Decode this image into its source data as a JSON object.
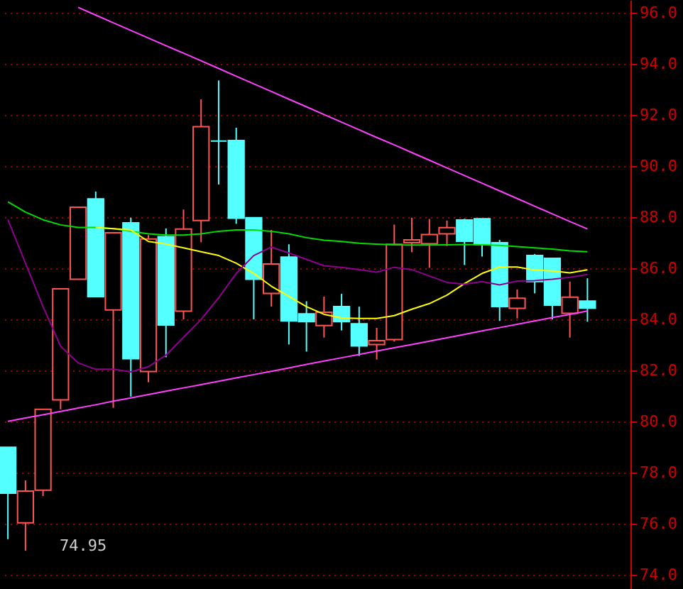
{
  "chart_data": {
    "type": "candlestick",
    "categories": [
      null,
      null,
      null,
      null,
      null,
      null,
      null,
      null,
      null,
      null,
      null,
      null,
      null,
      null,
      null,
      null,
      null,
      null,
      null,
      null,
      null,
      null,
      null,
      null,
      null,
      null,
      null,
      null,
      null,
      null,
      null,
      null,
      null,
      null
    ],
    "ohlc": [
      [
        79.0,
        79.0,
        75.4,
        77.2
      ],
      [
        76.04,
        77.7,
        74.95,
        77.28
      ],
      [
        77.32,
        80.48,
        77.09,
        80.48
      ],
      [
        80.85,
        85.2,
        80.48,
        85.2
      ],
      [
        85.57,
        88.39,
        85.57,
        88.39
      ],
      [
        88.72,
        89.0,
        84.89,
        84.89
      ],
      [
        84.37,
        87.39,
        80.54,
        87.39
      ],
      [
        87.78,
        87.98,
        80.98,
        82.46
      ],
      [
        81.96,
        87.3,
        81.54,
        87.15
      ],
      [
        87.24,
        87.56,
        82.52,
        83.78
      ],
      [
        84.32,
        88.3,
        84.0,
        87.54
      ],
      [
        87.87,
        92.61,
        87.02,
        91.54
      ],
      [
        90.98,
        93.35,
        89.28,
        90.98
      ],
      [
        91.0,
        91.5,
        87.74,
        87.96
      ],
      [
        87.98,
        87.98,
        84.0,
        85.57
      ],
      [
        85.02,
        87.5,
        84.5,
        86.17
      ],
      [
        86.44,
        86.94,
        83.02,
        83.94
      ],
      [
        84.22,
        84.71,
        82.74,
        83.91
      ],
      [
        83.76,
        84.89,
        83.29,
        84.28
      ],
      [
        84.5,
        85.0,
        83.57,
        83.91
      ],
      [
        83.83,
        84.5,
        82.57,
        82.96
      ],
      [
        83.02,
        83.67,
        82.43,
        83.17
      ],
      [
        83.21,
        87.71,
        83.13,
        86.94
      ],
      [
        87.0,
        87.98,
        86.63,
        87.11
      ],
      [
        86.96,
        87.93,
        86.02,
        87.32
      ],
      [
        87.35,
        87.87,
        86.87,
        87.59
      ],
      [
        87.89,
        87.94,
        86.13,
        87.06
      ],
      [
        87.94,
        87.94,
        86.46,
        86.93
      ],
      [
        87.0,
        87.11,
        83.94,
        84.5
      ],
      [
        84.43,
        85.17,
        84.04,
        84.83
      ],
      [
        86.5,
        86.56,
        85.02,
        85.48
      ],
      [
        86.39,
        86.39,
        84.0,
        84.56
      ],
      [
        84.24,
        85.48,
        83.29,
        84.87
      ],
      [
        84.72,
        85.61,
        83.91,
        84.44
      ]
    ],
    "colors": [
      "#54ffff",
      "#ff5454",
      "#ff5454",
      "#ff5454",
      "#ff5454",
      "#54ffff",
      "#ff5454",
      "#54ffff",
      "#ff5454",
      "#54ffff",
      "#ff5454",
      "#ff5454",
      "#54ffff",
      "#54ffff",
      "#54ffff",
      "#ff5454",
      "#54ffff",
      "#54ffff",
      "#ff5454",
      "#54ffff",
      "#54ffff",
      "#ff5454",
      "#ff5454",
      "#ff5454",
      "#ff5454",
      "#ff5454",
      "#54ffff",
      "#54ffff",
      "#54ffff",
      "#ff5454",
      "#54ffff",
      "#54ffff",
      "#ff5454",
      "#54ffff"
    ],
    "series": [
      {
        "type": "line",
        "color": "#00e000",
        "values": [
          88.6,
          88.2,
          87.9,
          87.7,
          87.6,
          87.6,
          87.55,
          87.45,
          87.35,
          87.3,
          87.3,
          87.35,
          87.45,
          87.5,
          87.5,
          87.45,
          87.35,
          87.2,
          87.1,
          87.05,
          86.98,
          86.95,
          86.92,
          86.91,
          86.91,
          86.92,
          86.93,
          86.92,
          86.9,
          86.85,
          86.8,
          86.75,
          86.68,
          86.65
        ]
      },
      {
        "type": "line",
        "color": "#ffff00",
        "values": [
          null,
          null,
          null,
          null,
          null,
          87.6,
          87.55,
          87.5,
          87.05,
          86.95,
          86.8,
          86.65,
          86.5,
          86.2,
          85.8,
          85.3,
          84.9,
          84.5,
          84.2,
          84.06,
          84.04,
          84.04,
          84.15,
          84.4,
          84.62,
          84.95,
          85.4,
          85.8,
          86.05,
          86.05,
          85.93,
          85.9,
          85.82,
          85.94
        ]
      },
      {
        "type": "line",
        "color": "#900090",
        "values": [
          87.9,
          86.2,
          84.5,
          82.95,
          82.3,
          82.05,
          82.05,
          81.95,
          82.15,
          82.6,
          83.3,
          84.0,
          84.85,
          85.8,
          86.5,
          86.83,
          86.6,
          86.35,
          86.1,
          86.04,
          85.95,
          85.85,
          86.04,
          85.95,
          85.7,
          85.45,
          85.38,
          85.48,
          85.35,
          85.5,
          85.52,
          85.57,
          85.65,
          85.76
        ]
      },
      {
        "type": "line",
        "color": "#ff40ff",
        "values": [
          null,
          null,
          null,
          null,
          96.21,
          95.91,
          95.61,
          95.31,
          95.01,
          94.71,
          94.42,
          94.12,
          93.82,
          93.52,
          93.22,
          92.92,
          92.62,
          92.32,
          92.02,
          91.72,
          91.42,
          91.12,
          90.83,
          90.53,
          90.23,
          89.93,
          89.63,
          89.33,
          89.03,
          88.73,
          88.43,
          88.13,
          87.83,
          87.54
        ]
      },
      {
        "type": "line",
        "color": "#ff40ff",
        "values": [
          80.01,
          80.14,
          80.27,
          80.4,
          80.53,
          80.66,
          80.8,
          80.93,
          81.06,
          81.19,
          81.32,
          81.45,
          81.58,
          81.71,
          81.84,
          81.97,
          82.1,
          82.24,
          82.37,
          82.5,
          82.63,
          82.76,
          82.89,
          83.02,
          83.15,
          83.28,
          83.41,
          83.55,
          83.68,
          83.81,
          83.94,
          84.07,
          84.2,
          84.33
        ]
      }
    ],
    "annotations": [
      "74.95"
    ],
    "ylim": [
      73.45,
      96.5
    ],
    "yticks": [
      {
        "value": 74,
        "label": "74.0"
      },
      {
        "value": 76,
        "label": "76.0"
      },
      {
        "value": 78,
        "label": "78.0"
      },
      {
        "value": 80,
        "label": "80.0"
      },
      {
        "value": 82,
        "label": "82.0"
      },
      {
        "value": 84,
        "label": "84.0"
      },
      {
        "value": 86,
        "label": "86.0"
      },
      {
        "value": 88,
        "label": "88.0"
      },
      {
        "value": 90,
        "label": "90.0"
      },
      {
        "value": 92,
        "label": "92.0"
      },
      {
        "value": 94,
        "label": "94.0"
      },
      {
        "value": 96,
        "label": "96.0"
      }
    ],
    "tick_labels": "y",
    "grid": "y"
  }
}
